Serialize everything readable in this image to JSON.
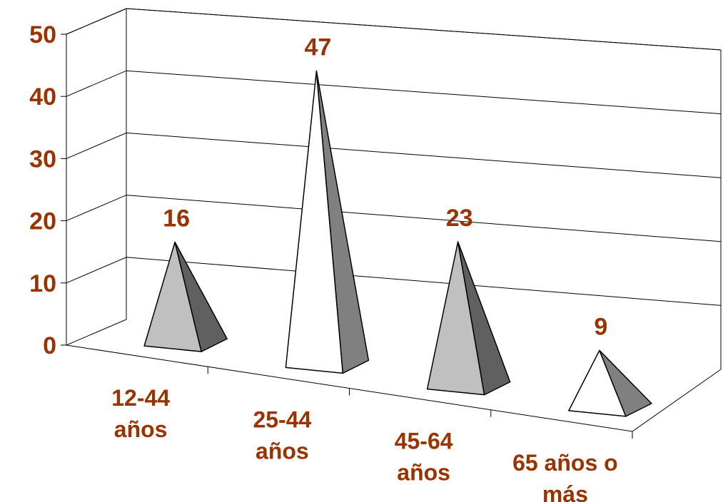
{
  "chart_data": {
    "type": "bar",
    "bar_shape": "3d-pyramid",
    "categories": [
      "12-44 años",
      "25-44 años",
      "45-64 años",
      "65 años o más"
    ],
    "category_label_lines": [
      [
        "12-44",
        "años"
      ],
      [
        "25-44",
        "años"
      ],
      [
        "45-64",
        "años"
      ],
      [
        "65 años o",
        "más"
      ]
    ],
    "values": [
      16,
      47,
      23,
      9
    ],
    "value_labels": [
      "16",
      "47",
      "23",
      "9"
    ],
    "y_ticks": [
      "0",
      "10",
      "20",
      "30",
      "40",
      "50"
    ],
    "ylim": [
      0,
      50
    ],
    "grid": true,
    "legend": "none",
    "colors": {
      "text": "#993300",
      "pyramid_front": [
        "#c0c0c0",
        "#ffffff",
        "#c0c0c0",
        "#ffffff"
      ],
      "pyramid_side": [
        "#606060",
        "#808080",
        "#606060",
        "#808080"
      ]
    }
  }
}
